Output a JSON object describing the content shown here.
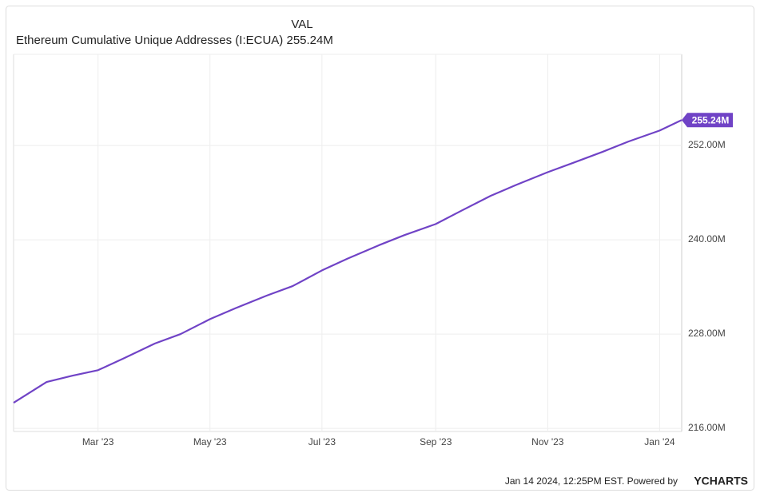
{
  "chart_data": {
    "type": "line",
    "title": "Ethereum Cumulative Unique Addresses (I:ECUA) 255.24M",
    "x": [
      "2023-01-14",
      "2023-02-01",
      "2023-02-15",
      "2023-03-01",
      "2023-03-15",
      "2023-04-01",
      "2023-04-15",
      "2023-05-01",
      "2023-05-15",
      "2023-06-01",
      "2023-06-15",
      "2023-07-01",
      "2023-07-15",
      "2023-08-01",
      "2023-08-15",
      "2023-09-01",
      "2023-09-15",
      "2023-10-01",
      "2023-10-15",
      "2023-11-01",
      "2023-11-15",
      "2023-12-01",
      "2023-12-15",
      "2024-01-01",
      "2024-01-13"
    ],
    "series": [
      {
        "name": "VAL",
        "color": "#7043c6",
        "values": [
          219.25,
          221.9,
          222.7,
          223.4,
          224.9,
          226.8,
          228.0,
          229.9,
          231.3,
          232.9,
          234.1,
          236.1,
          237.6,
          239.3,
          240.6,
          242.0,
          243.7,
          245.6,
          247.0,
          248.6,
          249.8,
          251.2,
          252.5,
          253.9,
          255.24
        ],
        "end_label": "255.24M"
      }
    ],
    "xlim": [
      "2023-01-14",
      "2024-01-13"
    ],
    "xticks": [
      {
        "value": "2023-03-01",
        "label": "Mar '23"
      },
      {
        "value": "2023-05-01",
        "label": "May '23"
      },
      {
        "value": "2023-07-01",
        "label": "Jul '23"
      },
      {
        "value": "2023-09-01",
        "label": "Sep '23"
      },
      {
        "value": "2023-11-01",
        "label": "Nov '23"
      },
      {
        "value": "2024-01-01",
        "label": "Jan '24"
      }
    ],
    "ylim": [
      215.6,
      263.6
    ],
    "yticks": [
      {
        "value": 216,
        "label": "216.00M"
      },
      {
        "value": 228,
        "label": "228.00M"
      },
      {
        "value": 240,
        "label": "240.00M"
      },
      {
        "value": 252,
        "label": "252.00M"
      }
    ],
    "grid": true,
    "credit": "Jan 14 2024, 12:25PM EST. Powered by",
    "brand": "YCHARTS"
  }
}
